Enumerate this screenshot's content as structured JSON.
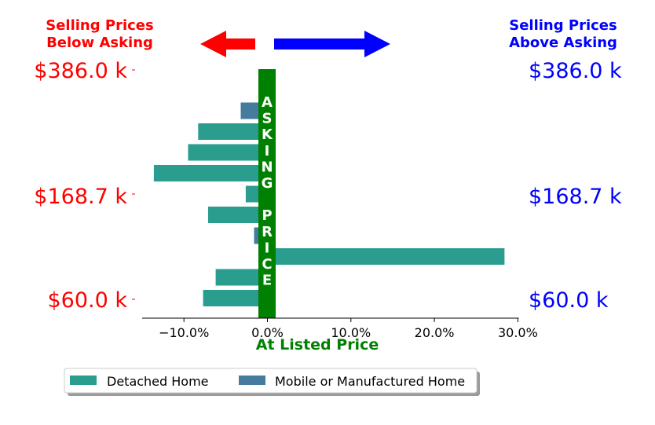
{
  "header": {
    "left_line1": "Selling Prices",
    "left_line2": "Below Asking",
    "right_line1": "Selling Prices",
    "right_line2": "Above Asking"
  },
  "price_labels": [
    "$386.0 k",
    "$168.7 k",
    "$60.0 k"
  ],
  "asking_text": "ASKING PRICE",
  "colors": {
    "below": "#ff0000",
    "above": "#0000ff",
    "asking": "#008000",
    "detached": "#2a9d8f",
    "mobile": "#457b9d"
  },
  "chart_data": {
    "type": "bar",
    "orientation": "horizontal",
    "xlabel": "At Listed Price",
    "xlim": [
      -15,
      30
    ],
    "xticks": [
      -10,
      0,
      10,
      20,
      30
    ],
    "xtick_labels": [
      "−10.0%",
      "0.0%",
      "10.0%",
      "20.0%",
      "30.0%"
    ],
    "legend_position": "bottom",
    "series": [
      {
        "name": "Detached Home",
        "color": "#2a9d8f"
      },
      {
        "name": "Mobile or Manufactured Home",
        "color": "#457b9d"
      }
    ],
    "bars": [
      {
        "series": "Mobile or Manufactured Home",
        "value": -3.2
      },
      {
        "series": "Detached Home",
        "value": -8.3
      },
      {
        "series": "Detached Home",
        "value": -9.5
      },
      {
        "series": "Detached Home",
        "value": -13.6
      },
      {
        "series": "Detached Home",
        "value": -2.6
      },
      {
        "series": "Detached Home",
        "value": -7.1
      },
      {
        "series": "Mobile or Manufactured Home",
        "value": -1.6
      },
      {
        "series": "Detached Home",
        "value": 28.4
      },
      {
        "series": "Detached Home",
        "value": -6.2
      },
      {
        "series": "Detached Home",
        "value": -7.7
      }
    ]
  }
}
